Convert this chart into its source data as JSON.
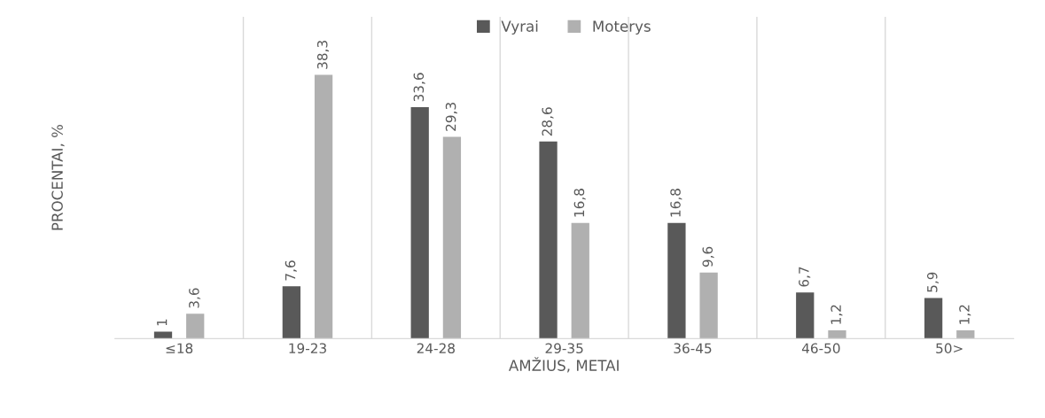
{
  "chart_data": {
    "type": "bar",
    "xlabel": "AMŽIUS, METAI",
    "ylabel": "PROCENTAI, %",
    "categories": [
      "≤18",
      "19-23",
      "24-28",
      "29-35",
      "36-45",
      "46-50",
      "50>"
    ],
    "series": [
      {
        "name": "Vyrai",
        "color": "#595959",
        "values": [
          1,
          7.6,
          33.6,
          28.6,
          16.8,
          6.7,
          5.9
        ],
        "value_labels": [
          "1",
          "7,6",
          "33,6",
          "28,6",
          "16,8",
          "6,7",
          "5,9"
        ]
      },
      {
        "name": "Moterys",
        "color": "#b0b0b0",
        "values": [
          3.6,
          38.3,
          29.3,
          16.8,
          9.6,
          1.2,
          1.2
        ],
        "value_labels": [
          "3,6",
          "38,3",
          "29,3",
          "16,8",
          "9,6",
          "1,2",
          "1,2"
        ]
      }
    ],
    "legend": "top",
    "grid": "x",
    "tick_labels": "x"
  }
}
